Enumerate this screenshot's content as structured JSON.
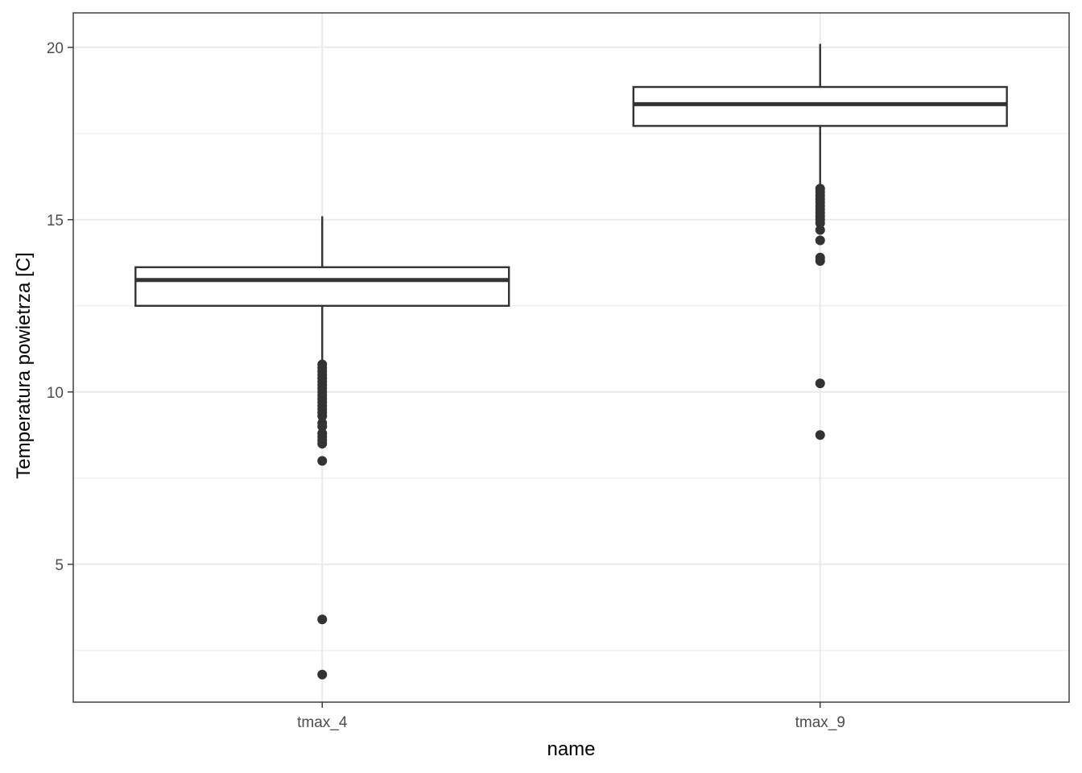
{
  "chart_data": {
    "type": "boxplot",
    "xlabel": "name",
    "ylabel": "Temperatura powietrza [C]",
    "categories": [
      "tmax_4",
      "tmax_9"
    ],
    "ylim": [
      1.0,
      21.0
    ],
    "yticks": [
      5,
      10,
      15,
      20
    ],
    "y_minor_ticks": [
      2.5,
      7.5,
      12.5,
      17.5
    ],
    "grid": true,
    "legend": "none",
    "colors": {
      "box_fill": "#ffffff",
      "stroke": "#333333",
      "grid": "#ebebeb",
      "panel_border": "#333333"
    },
    "boxes": [
      {
        "name": "tmax_4",
        "whisker_low": 10.9,
        "q1": 12.5,
        "median": 13.25,
        "q3": 13.62,
        "whisker_high": 15.1,
        "outliers": [
          10.8,
          10.7,
          10.6,
          10.5,
          10.4,
          10.3,
          10.2,
          10.1,
          10.0,
          9.9,
          9.8,
          9.7,
          9.6,
          9.5,
          9.4,
          9.3,
          9.1,
          9.0,
          8.8,
          8.7,
          8.6,
          8.5,
          8.0,
          3.4,
          1.8
        ]
      },
      {
        "name": "tmax_9",
        "whisker_low": 16.0,
        "q1": 17.72,
        "median": 18.35,
        "q3": 18.85,
        "whisker_high": 20.1,
        "outliers": [
          15.9,
          15.8,
          15.7,
          15.6,
          15.5,
          15.4,
          15.3,
          15.2,
          15.1,
          15.0,
          14.9,
          14.7,
          14.4,
          13.9,
          13.8,
          10.25,
          8.75
        ]
      }
    ]
  }
}
